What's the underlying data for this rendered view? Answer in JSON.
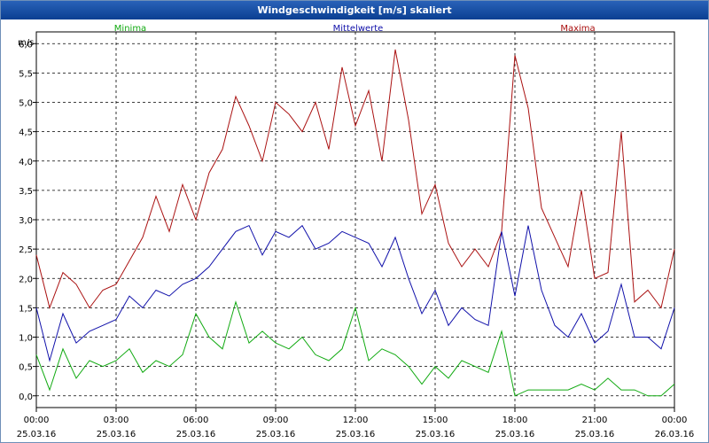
{
  "window": {
    "title": "Windgeschwindigkeit [m/s] skaliert"
  },
  "chart_data": {
    "type": "line",
    "title": "Windgeschwindigkeit [m/s] skaliert",
    "ylabel": "m/s",
    "ylim": [
      -0.2,
      6.2
    ],
    "xlim": [
      0,
      24
    ],
    "grid": true,
    "legend": {
      "placement": "top",
      "entries": [
        "Minima",
        "Mittelwerte",
        "Maxima"
      ]
    },
    "y_ticks": [
      "0,0",
      "0,5",
      "1,0",
      "1,5",
      "2,0",
      "2,5",
      "3,0",
      "3,5",
      "4,0",
      "4,5",
      "5,0",
      "5,5",
      "6,0"
    ],
    "x_ticks": [
      {
        "time": "00:00",
        "date": "25.03.16"
      },
      {
        "time": "03:00",
        "date": "25.03.16"
      },
      {
        "time": "06:00",
        "date": "25.03.16"
      },
      {
        "time": "09:00",
        "date": "25.03.16"
      },
      {
        "time": "12:00",
        "date": "25.03.16"
      },
      {
        "time": "15:00",
        "date": "25.03.16"
      },
      {
        "time": "18:00",
        "date": "25.03.16"
      },
      {
        "time": "21:00",
        "date": "25.03.16"
      },
      {
        "time": "00:00",
        "date": "26.03.16"
      }
    ],
    "x_hours": [
      0,
      0.5,
      1,
      1.5,
      2,
      2.5,
      3,
      3.5,
      4,
      4.5,
      5,
      5.5,
      6,
      6.5,
      7,
      7.5,
      8,
      8.5,
      9,
      9.5,
      10,
      10.5,
      11,
      11.5,
      12,
      12.5,
      13,
      13.5,
      14,
      14.5,
      15,
      15.5,
      16,
      16.5,
      17,
      17.5,
      18,
      18.5,
      19,
      19.5,
      20,
      20.5,
      21,
      21.5,
      22,
      22.5,
      23,
      23.5,
      24
    ],
    "series": [
      {
        "name": "Maxima",
        "color": "#aa1111",
        "values": [
          2.4,
          1.5,
          2.1,
          1.9,
          1.5,
          1.8,
          1.9,
          2.3,
          2.7,
          3.4,
          2.8,
          3.6,
          3.0,
          3.8,
          4.2,
          5.1,
          4.6,
          4.0,
          5.0,
          4.8,
          4.5,
          5.0,
          4.2,
          5.6,
          4.6,
          5.2,
          4.0,
          5.9,
          4.7,
          3.1,
          3.6,
          2.6,
          2.2,
          2.5,
          2.2,
          2.8,
          5.8,
          4.9,
          3.2,
          2.7,
          2.2,
          3.5,
          2.0,
          2.1,
          4.5,
          1.6,
          1.8,
          1.5,
          2.5
        ]
      },
      {
        "name": "Mittelwerte",
        "color": "#1111aa",
        "values": [
          1.5,
          0.6,
          1.4,
          0.9,
          1.1,
          1.2,
          1.3,
          1.7,
          1.5,
          1.8,
          1.7,
          1.9,
          2.0,
          2.2,
          2.5,
          2.8,
          2.9,
          2.4,
          2.8,
          2.7,
          2.9,
          2.5,
          2.6,
          2.8,
          2.7,
          2.6,
          2.2,
          2.7,
          2.0,
          1.4,
          1.8,
          1.2,
          1.5,
          1.3,
          1.2,
          2.8,
          1.7,
          2.9,
          1.8,
          1.2,
          1.0,
          1.4,
          0.9,
          1.1,
          1.9,
          1.0,
          1.0,
          0.8,
          1.5
        ]
      },
      {
        "name": "Minima",
        "color": "#11aa11",
        "values": [
          0.7,
          0.1,
          0.8,
          0.3,
          0.6,
          0.5,
          0.6,
          0.8,
          0.4,
          0.6,
          0.5,
          0.7,
          1.4,
          1.0,
          0.8,
          1.6,
          0.9,
          1.1,
          0.9,
          0.8,
          1.0,
          0.7,
          0.6,
          0.8,
          1.5,
          0.6,
          0.8,
          0.7,
          0.5,
          0.2,
          0.5,
          0.3,
          0.6,
          0.5,
          0.4,
          1.1,
          0.0,
          0.1,
          0.1,
          0.1,
          0.1,
          0.2,
          0.1,
          0.3,
          0.1,
          0.1,
          0.0,
          0.0,
          0.2
        ]
      }
    ]
  }
}
